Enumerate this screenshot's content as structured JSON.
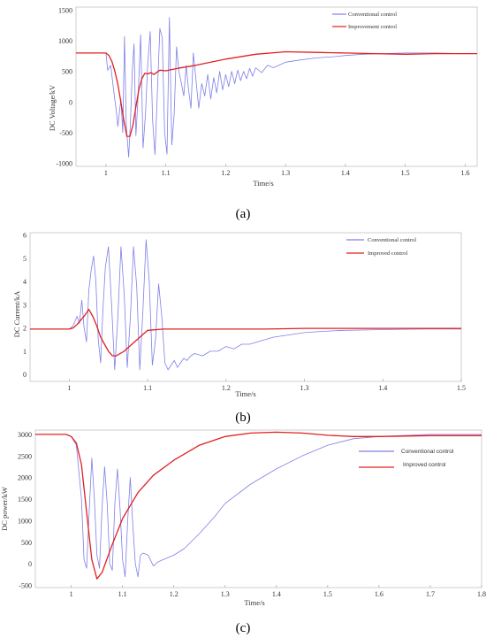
{
  "colors": {
    "conventional": "#7f7fe8",
    "improved": "#e02020"
  },
  "chart_data": [
    {
      "type": "line",
      "panel_label": "(a)",
      "xlabel": "Time/s",
      "ylabel": "DC Voltage/kV",
      "xlim": [
        0.95,
        1.62
      ],
      "ylim": [
        -1050,
        1550
      ],
      "xticks": [
        "1",
        "1.1",
        "1.2",
        "1.3",
        "1.4",
        "1.5",
        "1.6"
      ],
      "yticks": [
        "1500",
        "1000",
        "500",
        "0",
        "-500",
        "-1000"
      ],
      "legend": "top-right",
      "series": [
        {
          "name": "Conventional control",
          "color": "#7f7fe8",
          "x": [
            0.95,
            1.0,
            1.003,
            1.008,
            1.013,
            1.017,
            1.02,
            1.025,
            1.028,
            1.031,
            1.034,
            1.036,
            1.038,
            1.041,
            1.044,
            1.047,
            1.05,
            1.054,
            1.058,
            1.062,
            1.066,
            1.07,
            1.074,
            1.078,
            1.082,
            1.086,
            1.09,
            1.094,
            1.098,
            1.102,
            1.106,
            1.11,
            1.114,
            1.118,
            1.122,
            1.126,
            1.13,
            1.134,
            1.138,
            1.142,
            1.146,
            1.15,
            1.155,
            1.16,
            1.165,
            1.17,
            1.175,
            1.18,
            1.185,
            1.19,
            1.195,
            1.2,
            1.205,
            1.21,
            1.215,
            1.22,
            1.225,
            1.23,
            1.235,
            1.24,
            1.245,
            1.25,
            1.26,
            1.27,
            1.28,
            1.3,
            1.32,
            1.35,
            1.38,
            1.4,
            1.43,
            1.46,
            1.5,
            1.55,
            1.6,
            1.62
          ],
          "y": [
            800,
            800,
            520,
            600,
            180,
            -120,
            -400,
            50,
            -500,
            1070,
            -380,
            -650,
            -900,
            -300,
            500,
            950,
            -550,
            150,
            1100,
            -750,
            -200,
            650,
            1150,
            -300,
            -860,
            200,
            1200,
            1050,
            -500,
            -850,
            1380,
            -700,
            -200,
            900,
            500,
            300,
            100,
            600,
            200,
            -100,
            800,
            400,
            -100,
            300,
            100,
            450,
            50,
            400,
            150,
            500,
            200,
            450,
            250,
            500,
            300,
            520,
            350,
            500,
            380,
            550,
            420,
            560,
            480,
            600,
            560,
            650,
            680,
            720,
            740,
            760,
            780,
            790,
            800,
            800,
            790,
            790
          ]
        },
        {
          "name": "Improvement control",
          "color": "#e02020",
          "x": [
            0.95,
            1.0,
            1.005,
            1.01,
            1.015,
            1.02,
            1.025,
            1.03,
            1.035,
            1.04,
            1.045,
            1.05,
            1.055,
            1.06,
            1.065,
            1.07,
            1.075,
            1.08,
            1.09,
            1.1,
            1.12,
            1.15,
            1.2,
            1.25,
            1.3,
            1.35,
            1.4,
            1.45,
            1.5,
            1.55,
            1.6,
            1.62
          ],
          "y": [
            800,
            800,
            760,
            660,
            500,
            290,
            0,
            -300,
            -560,
            -560,
            -380,
            -80,
            200,
            380,
            470,
            460,
            480,
            450,
            520,
            510,
            550,
            600,
            700,
            780,
            820,
            810,
            800,
            790,
            780,
            790,
            790,
            790
          ]
        }
      ]
    },
    {
      "type": "line",
      "panel_label": "(b)",
      "xlabel": "Time/s",
      "ylabel": "DC Current/kA",
      "xlim": [
        0.95,
        1.5
      ],
      "ylim": [
        -0.3,
        6.1
      ],
      "xticks": [
        "1",
        "1.1",
        "1.2",
        "1.3",
        "1.4",
        "1.5"
      ],
      "yticks": [
        "6",
        "5",
        "4",
        "3",
        "2",
        "1",
        "0"
      ],
      "legend": "top-right",
      "series": [
        {
          "name": "Conventional control",
          "color": "#7f7fe8",
          "x": [
            0.95,
            1.0,
            1.005,
            1.01,
            1.013,
            1.016,
            1.019,
            1.022,
            1.025,
            1.028,
            1.031,
            1.034,
            1.037,
            1.04,
            1.043,
            1.046,
            1.05,
            1.054,
            1.058,
            1.062,
            1.066,
            1.07,
            1.074,
            1.078,
            1.082,
            1.086,
            1.09,
            1.094,
            1.098,
            1.102,
            1.106,
            1.11,
            1.114,
            1.118,
            1.122,
            1.126,
            1.13,
            1.134,
            1.138,
            1.142,
            1.146,
            1.15,
            1.155,
            1.16,
            1.17,
            1.18,
            1.19,
            1.2,
            1.21,
            1.22,
            1.23,
            1.24,
            1.25,
            1.26,
            1.28,
            1.3,
            1.32,
            1.35,
            1.4,
            1.45,
            1.5
          ],
          "y": [
            1.95,
            1.95,
            2.1,
            2.5,
            2.2,
            3.2,
            2.0,
            1.4,
            3.6,
            4.5,
            5.1,
            4.0,
            1.5,
            0.5,
            2.8,
            4.6,
            5.5,
            3.0,
            0.2,
            2.5,
            5.5,
            3.5,
            0.3,
            2.5,
            5.5,
            3.8,
            0.2,
            2.8,
            5.8,
            4.0,
            0.4,
            1.5,
            3.9,
            2.5,
            0.5,
            0.2,
            0.4,
            0.6,
            0.3,
            0.5,
            0.7,
            0.6,
            0.8,
            0.9,
            0.8,
            1.0,
            1.0,
            1.2,
            1.1,
            1.3,
            1.3,
            1.4,
            1.5,
            1.6,
            1.7,
            1.8,
            1.85,
            1.9,
            1.93,
            1.95,
            1.95
          ]
        },
        {
          "name": "Improved control",
          "color": "#e02020",
          "x": [
            0.95,
            1.0,
            1.005,
            1.01,
            1.015,
            1.02,
            1.025,
            1.03,
            1.035,
            1.04,
            1.045,
            1.05,
            1.055,
            1.06,
            1.065,
            1.07,
            1.08,
            1.09,
            1.1,
            1.12,
            1.15,
            1.2,
            1.25,
            1.3,
            1.35,
            1.4,
            1.45,
            1.5
          ],
          "y": [
            1.95,
            1.95,
            2.0,
            2.15,
            2.35,
            2.55,
            2.8,
            2.5,
            2.1,
            1.6,
            1.3,
            1.0,
            0.8,
            0.8,
            0.9,
            1.0,
            1.3,
            1.6,
            1.9,
            1.95,
            1.95,
            1.95,
            1.95,
            1.98,
            1.98,
            1.98,
            1.98,
            1.98
          ]
        }
      ]
    },
    {
      "type": "line",
      "panel_label": "(c)",
      "xlabel": "Time/s",
      "ylabel": "DC power/kW",
      "xlim": [
        0.93,
        1.8
      ],
      "ylim": [
        -550,
        3100
      ],
      "xticks": [
        "1",
        "1.1",
        "1.2",
        "1.3",
        "1.4",
        "1.5",
        "1.6",
        "1.7",
        "1.8"
      ],
      "yticks": [
        "3000",
        "2500",
        "2000",
        "1500",
        "1000",
        "500",
        "0",
        "-500"
      ],
      "legend": "top-right",
      "series": [
        {
          "name": "Conventional control",
          "color": "#7f7fe8",
          "x": [
            0.93,
            0.99,
            1.0,
            1.01,
            1.02,
            1.025,
            1.03,
            1.035,
            1.04,
            1.045,
            1.05,
            1.055,
            1.06,
            1.065,
            1.07,
            1.075,
            1.08,
            1.085,
            1.09,
            1.095,
            1.1,
            1.105,
            1.11,
            1.115,
            1.12,
            1.125,
            1.13,
            1.135,
            1.14,
            1.15,
            1.16,
            1.17,
            1.18,
            1.2,
            1.22,
            1.25,
            1.28,
            1.3,
            1.35,
            1.4,
            1.45,
            1.5,
            1.55,
            1.6,
            1.7,
            1.8
          ],
          "y": [
            3000,
            3000,
            2950,
            2750,
            1500,
            100,
            -100,
            1200,
            2450,
            1500,
            200,
            -100,
            1300,
            2250,
            1400,
            0,
            -150,
            1400,
            2200,
            1300,
            100,
            -300,
            1000,
            2000,
            900,
            0,
            -300,
            200,
            250,
            200,
            -50,
            50,
            100,
            200,
            350,
            700,
            1100,
            1400,
            1850,
            2200,
            2500,
            2750,
            2900,
            2950,
            3000,
            3000
          ]
        },
        {
          "name": "Improved control",
          "color": "#e02020",
          "x": [
            0.93,
            0.99,
            1.0,
            1.01,
            1.02,
            1.03,
            1.04,
            1.05,
            1.06,
            1.08,
            1.1,
            1.13,
            1.16,
            1.2,
            1.25,
            1.3,
            1.35,
            1.4,
            1.45,
            1.5,
            1.55,
            1.6,
            1.7,
            1.8
          ],
          "y": [
            3000,
            3000,
            2950,
            2800,
            2300,
            1200,
            100,
            -350,
            -200,
            450,
            1050,
            1650,
            2050,
            2400,
            2750,
            2950,
            3030,
            3050,
            3030,
            2980,
            2950,
            2950,
            2970,
            2970
          ]
        }
      ]
    }
  ]
}
